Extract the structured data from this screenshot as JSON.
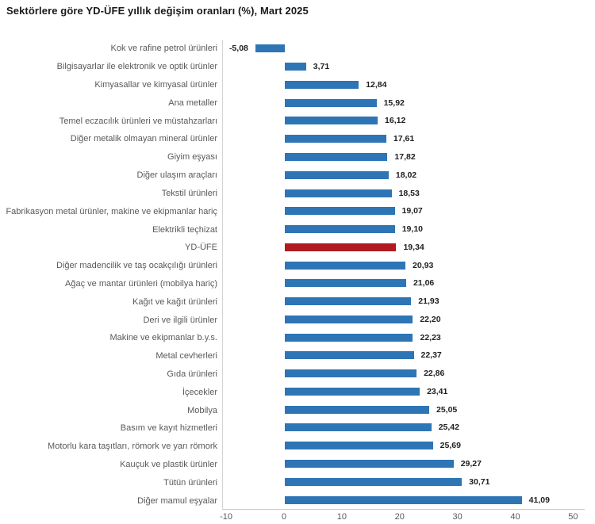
{
  "chart_data": {
    "type": "bar",
    "orientation": "horizontal",
    "title": "Sektörlere göre YD-ÜFE yıllık değişim oranları (%), Mart 2025",
    "categories": [
      "Kok ve rafine petrol ürünleri",
      "Bilgisayarlar ile elektronik ve optik ürünler",
      "Kimyasallar ve kimyasal ürünler",
      "Ana metaller",
      "Temel eczacılık ürünleri ve müstahzarları",
      "Diğer metalik olmayan mineral ürünler",
      "Giyim eşyası",
      "Diğer ulaşım araçları",
      "Tekstil ürünleri",
      "Fabrikasyon metal ürünler, makine ve ekipmanlar hariç",
      "Elektrikli teçhizat",
      "YD-ÜFE",
      "Diğer madencilik ve taş ocakçılığı ürünleri",
      "Ağaç ve mantar ürünleri (mobilya hariç)",
      "Kağıt ve kağıt ürünleri",
      "Deri ve ilgili ürünler",
      "Makine ve ekipmanlar b.y.s.",
      "Metal cevherleri",
      "Gıda ürünleri",
      "İçecekler",
      "Mobilya",
      "Basım ve kayıt hizmetleri",
      "Motorlu kara taşıtları, römork ve yarı römork",
      "Kauçuk ve plastik ürünler",
      "Tütün ürünleri",
      "Diğer mamul eşyalar"
    ],
    "values": [
      -5.08,
      3.71,
      12.84,
      15.92,
      16.12,
      17.61,
      17.82,
      18.02,
      18.53,
      19.07,
      19.1,
      19.34,
      20.93,
      21.06,
      21.93,
      22.2,
      22.23,
      22.37,
      22.86,
      23.41,
      25.05,
      25.42,
      25.69,
      29.27,
      30.71,
      41.09
    ],
    "value_labels": [
      "-5,08",
      "3,71",
      "12,84",
      "15,92",
      "16,12",
      "17,61",
      "17,82",
      "18,02",
      "18,53",
      "19,07",
      "19,10",
      "19,34",
      "20,93",
      "21,06",
      "21,93",
      "22,20",
      "22,23",
      "22,37",
      "22,86",
      "23,41",
      "25,05",
      "25,42",
      "25,69",
      "29,27",
      "30,71",
      "41,09"
    ],
    "highlight_category": "YD-ÜFE",
    "x_ticks": [
      -10,
      0,
      10,
      20,
      30,
      40,
      50
    ],
    "xlim": [
      -10,
      50
    ],
    "grid": false,
    "legend": null,
    "colors": {
      "bar": "#2E75B6",
      "highlight": "#B11A21",
      "axis_text": "#595959",
      "value_text": "#1F1F1F",
      "axis_line": "#C9C9C9"
    }
  }
}
